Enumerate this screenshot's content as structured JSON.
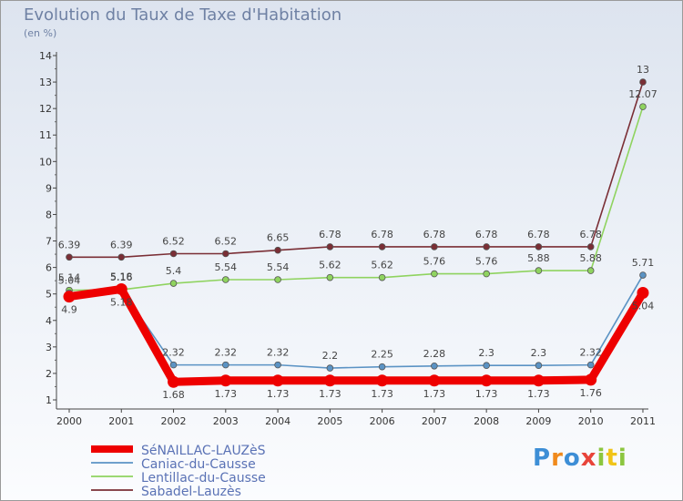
{
  "chart_data": {
    "type": "line",
    "title": "Evolution du Taux de Taxe d'Habitation",
    "ylabel": "(en %)",
    "xlabel": "",
    "categories": [
      "2000",
      "2001",
      "2002",
      "2003",
      "2004",
      "2005",
      "2006",
      "2007",
      "2008",
      "2009",
      "2010",
      "2011"
    ],
    "ylim": [
      1,
      14
    ],
    "yticks": [
      "1",
      "2",
      "3",
      "4",
      "5",
      "6",
      "7",
      "8",
      "9",
      "10",
      "11",
      "12",
      "13",
      "14"
    ],
    "series": [
      {
        "name": "SéNAILLAC-LAUZèS",
        "color": "#ee0000",
        "emphasis": true,
        "values": [
          4.9,
          5.18,
          1.68,
          1.73,
          1.73,
          1.73,
          1.73,
          1.73,
          1.73,
          1.73,
          1.76,
          5.04
        ],
        "labels": [
          "4.9",
          "5.18",
          "1.68",
          "1.73",
          "1.73",
          "1.73",
          "1.73",
          "1.73",
          "1.73",
          "1.73",
          "1.76",
          "5.04"
        ]
      },
      {
        "name": "Caniac-du-Causse",
        "color": "#5b93c4",
        "values": [
          5.04,
          5.18,
          2.32,
          2.32,
          2.32,
          2.2,
          2.25,
          2.28,
          2.3,
          2.3,
          2.32,
          5.71
        ],
        "labels": [
          "5.04",
          "5.18",
          "2.32",
          "2.32",
          "2.32",
          "2.2",
          "2.25",
          "2.28",
          "2.3",
          "2.3",
          "2.32",
          "5.71"
        ]
      },
      {
        "name": "Lentillac-du-Causse",
        "color": "#8fd35f",
        "values": [
          5.14,
          5.16,
          5.4,
          5.54,
          5.54,
          5.62,
          5.62,
          5.76,
          5.76,
          5.88,
          5.88,
          12.07
        ],
        "labels": [
          "5.14",
          "5.16",
          "5.4",
          "5.54",
          "5.54",
          "5.62",
          "5.62",
          "5.76",
          "5.76",
          "5.88",
          "5.88",
          "12.07"
        ]
      },
      {
        "name": "Sabadel-Lauzès",
        "color": "#7a2e35",
        "values": [
          6.39,
          6.39,
          6.52,
          6.52,
          6.65,
          6.78,
          6.78,
          6.78,
          6.78,
          6.78,
          6.78,
          13.0
        ],
        "labels": [
          "6.39",
          "6.39",
          "6.52",
          "6.52",
          "6.65",
          "6.78",
          "6.78",
          "6.78",
          "6.78",
          "6.78",
          "6.78",
          "13"
        ]
      }
    ]
  },
  "logo": {
    "p": "P",
    "r": "r",
    "o": "o",
    "x": "x",
    "i": "i",
    "t": "t",
    "i2": "i"
  }
}
